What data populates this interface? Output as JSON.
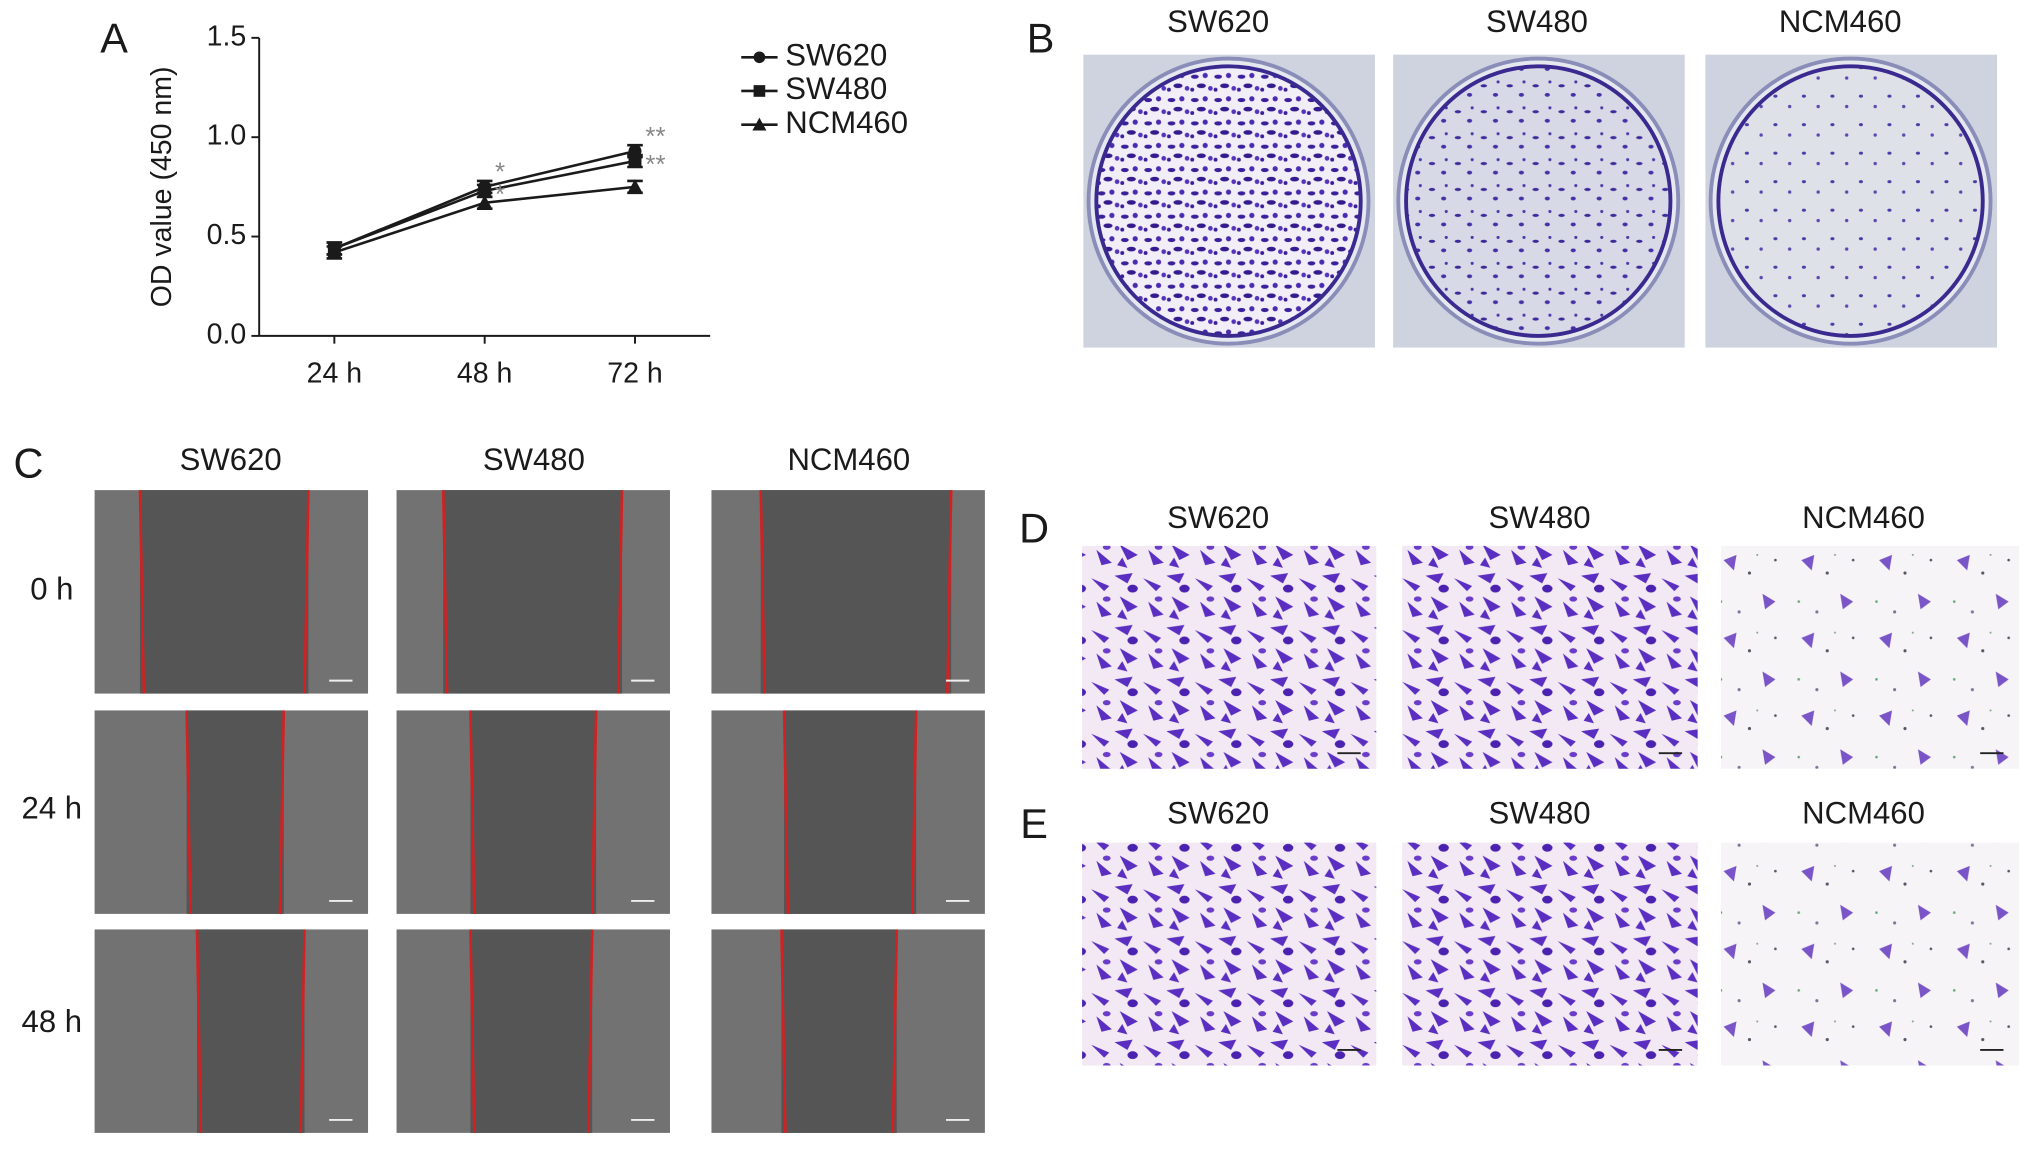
{
  "chart_data": {
    "type": "line",
    "y_label": "OD value (450 nm)",
    "categories": [
      "24 h",
      "48 h",
      "72 h"
    ],
    "series": [
      {
        "name": "SW620",
        "color": "#1a1a1a",
        "marker": "circle",
        "values": [
          0.44,
          0.75,
          0.93
        ],
        "errors": [
          0.03,
          0.03,
          0.03
        ],
        "annotations": [
          null,
          "*",
          "**"
        ]
      },
      {
        "name": "SW480",
        "color": "#1a1a1a",
        "marker": "square",
        "values": [
          0.44,
          0.73,
          0.88
        ],
        "errors": [
          0.03,
          0.03,
          0.03
        ],
        "annotations": [
          null,
          "*",
          "**"
        ]
      },
      {
        "name": "NCM460",
        "color": "#1a1a1a",
        "marker": "triangle",
        "values": [
          0.42,
          0.67,
          0.75
        ],
        "errors": [
          0.03,
          0.03,
          0.03
        ],
        "annotations": [
          null,
          null,
          null
        ]
      }
    ],
    "ylim": [
      0,
      1.5
    ],
    "yticks": [
      {
        "value": 0,
        "label": "0.0"
      },
      {
        "value": 0.5,
        "label": "0.5"
      },
      {
        "value": 1,
        "label": "1.0"
      },
      {
        "value": 1.5,
        "label": "1.5"
      }
    ],
    "annotation_color": "#888888"
  },
  "panel_labels": [
    "A",
    "B",
    "C",
    "D",
    "E"
  ],
  "panel_b": {
    "columns": [
      "SW620",
      "SW480",
      "NCM460"
    ]
  },
  "panel_c": {
    "columns": [
      "SW620",
      "SW480",
      "NCM460"
    ],
    "rows": [
      "0 h",
      "24 h",
      "48 h"
    ]
  },
  "panel_d": {
    "columns": [
      "SW620",
      "SW480",
      "NCM460"
    ]
  },
  "panel_e": {
    "columns": [
      "SW620",
      "SW480",
      "NCM460"
    ]
  }
}
